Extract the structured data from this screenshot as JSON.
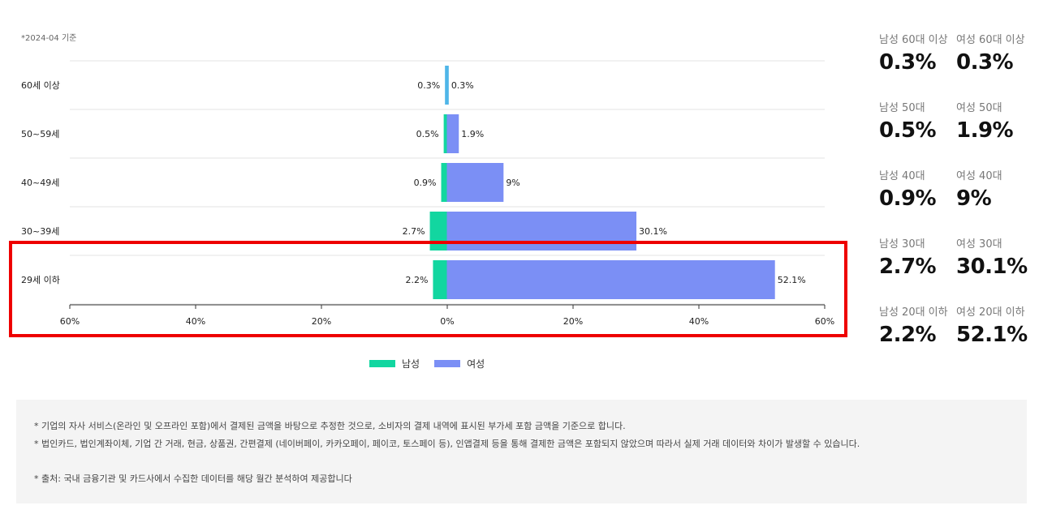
{
  "basis_date": "*2024-04 기준",
  "colors": {
    "male": "#12d6a0",
    "female": "#7b8ff5",
    "female_small": "#4fb6e8",
    "highlight": "#ee0000"
  },
  "chart_data": {
    "type": "bar",
    "orientation": "horizontal-diverging",
    "categories": [
      "60세 이상",
      "50~59세",
      "40~49세",
      "30~39세",
      "29세 이하"
    ],
    "series": [
      {
        "name": "남성",
        "values": [
          0.3,
          0.5,
          0.9,
          2.7,
          2.2
        ],
        "labels": [
          "0.3%",
          "0.5%",
          "0.9%",
          "2.7%",
          "2.2%"
        ]
      },
      {
        "name": "여성",
        "values": [
          0.3,
          1.9,
          9,
          30.1,
          52.1
        ],
        "labels": [
          "0.3%",
          "1.9%",
          "9%",
          "30.1%",
          "52.1%"
        ]
      }
    ],
    "xlim": [
      -60,
      60
    ],
    "xticks": [
      "60%",
      "40%",
      "20%",
      "0%",
      "20%",
      "40%",
      "60%"
    ],
    "highlighted_category": "29세 이하",
    "grid": true,
    "legend_position": "bottom-center"
  },
  "legend": {
    "male": "남성",
    "female": "여성"
  },
  "stats": [
    {
      "male_label": "남성 60대 이상",
      "male_value": "0.3%",
      "female_label": "여성 60대 이상",
      "female_value": "0.3%"
    },
    {
      "male_label": "남성 50대",
      "male_value": "0.5%",
      "female_label": "여성 50대",
      "female_value": "1.9%"
    },
    {
      "male_label": "남성 40대",
      "male_value": "0.9%",
      "female_label": "여성 40대",
      "female_value": "9%"
    },
    {
      "male_label": "남성 30대",
      "male_value": "2.7%",
      "female_label": "여성 30대",
      "female_value": "30.1%"
    },
    {
      "male_label": "남성 20대 이하",
      "male_value": "2.2%",
      "female_label": "여성 20대 이하",
      "female_value": "52.1%"
    }
  ],
  "notes": {
    "line1": "* 기업의 자사 서비스(온라인 및 오프라인 포함)에서 결제된 금액을 바탕으로 추정한 것으로, 소비자의 결제 내역에 표시된 부가세 포함 금액을 기준으로 합니다.",
    "line2": "* 법인카드, 법인계좌이체, 기업 간 거래, 현금, 상품권, 간편결제 (네이버페이, 카카오페이, 페이코, 토스페이 등), 인앱결제 등을 통해 결제한 금액은 포함되지 않았으며 따라서 실제 거래 데이터와 차이가 발생할 수 있습니다.",
    "line3": "* 출처:   국내 금융기관 및 카드사에서 수집한 데이터를 해당 월간 분석하여 제공합니다"
  }
}
